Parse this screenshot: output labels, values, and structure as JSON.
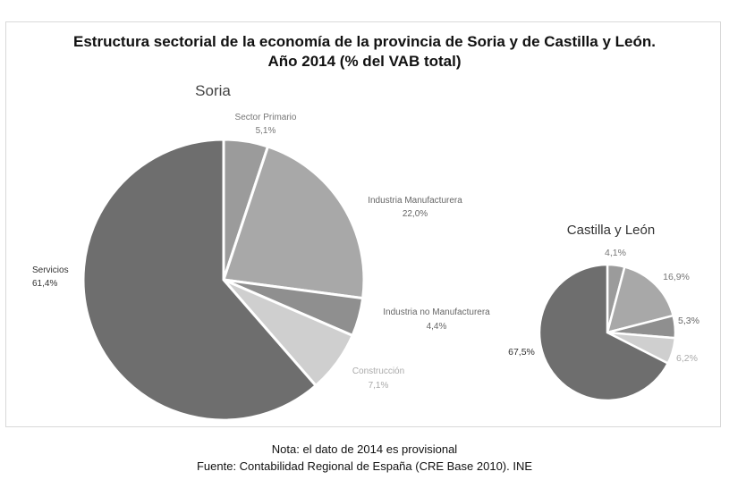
{
  "title_line1": "Estructura sectorial de la economía de la provincia de Soria y de Castilla y León.",
  "title_line2": "Año 2014 (% del VAB total)",
  "note": "Nota: el dato de 2014 es provisional",
  "source": "Fuente: Contabilidad Regional de España (CRE Base 2010). INE",
  "chart_data": [
    {
      "type": "pie",
      "title": "Soria",
      "categories": [
        "Sector Primario",
        "Industria Manufacturera",
        "Industria no Manufacturera",
        "Construcción",
        "Servicios"
      ],
      "values": [
        5.1,
        22.0,
        4.4,
        7.1,
        61.4
      ],
      "labels": [
        "5,1%",
        "22,0%",
        "4,4%",
        "7,1%",
        "61,4%"
      ],
      "colors": [
        "#9b9b9b",
        "#a8a8a8",
        "#8f8f8f",
        "#cfcfcf",
        "#6e6e6e"
      ]
    },
    {
      "type": "pie",
      "title": "Castilla y León",
      "categories": [
        "Sector Primario",
        "Industria Manufacturera",
        "Industria no Manufacturera",
        "Construcción",
        "Servicios"
      ],
      "values": [
        4.1,
        16.9,
        5.3,
        6.2,
        67.5
      ],
      "labels": [
        "4,1%",
        "16,9%",
        "5,3%",
        "6,2%",
        "67,5%"
      ],
      "colors": [
        "#9b9b9b",
        "#a8a8a8",
        "#8f8f8f",
        "#cfcfcf",
        "#6e6e6e"
      ]
    }
  ]
}
